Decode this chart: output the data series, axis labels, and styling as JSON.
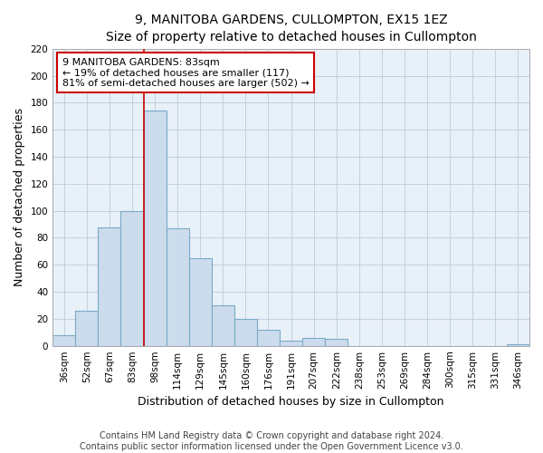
{
  "title": "9, MANITOBA GARDENS, CULLOMPTON, EX15 1EZ",
  "subtitle": "Size of property relative to detached houses in Cullompton",
  "xlabel": "Distribution of detached houses by size in Cullompton",
  "ylabel": "Number of detached properties",
  "categories": [
    "36sqm",
    "52sqm",
    "67sqm",
    "83sqm",
    "98sqm",
    "114sqm",
    "129sqm",
    "145sqm",
    "160sqm",
    "176sqm",
    "191sqm",
    "207sqm",
    "222sqm",
    "238sqm",
    "253sqm",
    "269sqm",
    "284sqm",
    "300sqm",
    "315sqm",
    "331sqm",
    "346sqm"
  ],
  "values": [
    8,
    26,
    88,
    100,
    174,
    87,
    65,
    30,
    20,
    12,
    4,
    6,
    5,
    0,
    0,
    0,
    0,
    0,
    0,
    0,
    1
  ],
  "bar_color": "#ccdcec",
  "bar_edge_color": "#7aaac8",
  "plot_bg_color": "#e8f0f8",
  "vline_x": 3,
  "vline_color": "#cc0000",
  "annotation_title": "9 MANITOBA GARDENS: 83sqm",
  "annotation_line1": "← 19% of detached houses are smaller (117)",
  "annotation_line2": "81% of semi-detached houses are larger (502) →",
  "annotation_box_color": "#ffffff",
  "annotation_box_edge": "#cc0000",
  "ylim": [
    0,
    220
  ],
  "yticks": [
    0,
    20,
    40,
    60,
    80,
    100,
    120,
    140,
    160,
    180,
    200,
    220
  ],
  "footer1": "Contains HM Land Registry data © Crown copyright and database right 2024.",
  "footer2": "Contains public sector information licensed under the Open Government Licence v3.0.",
  "title_fontsize": 10,
  "subtitle_fontsize": 9,
  "axis_label_fontsize": 9,
  "tick_fontsize": 7.5,
  "footer_fontsize": 7,
  "annotation_fontsize": 8
}
